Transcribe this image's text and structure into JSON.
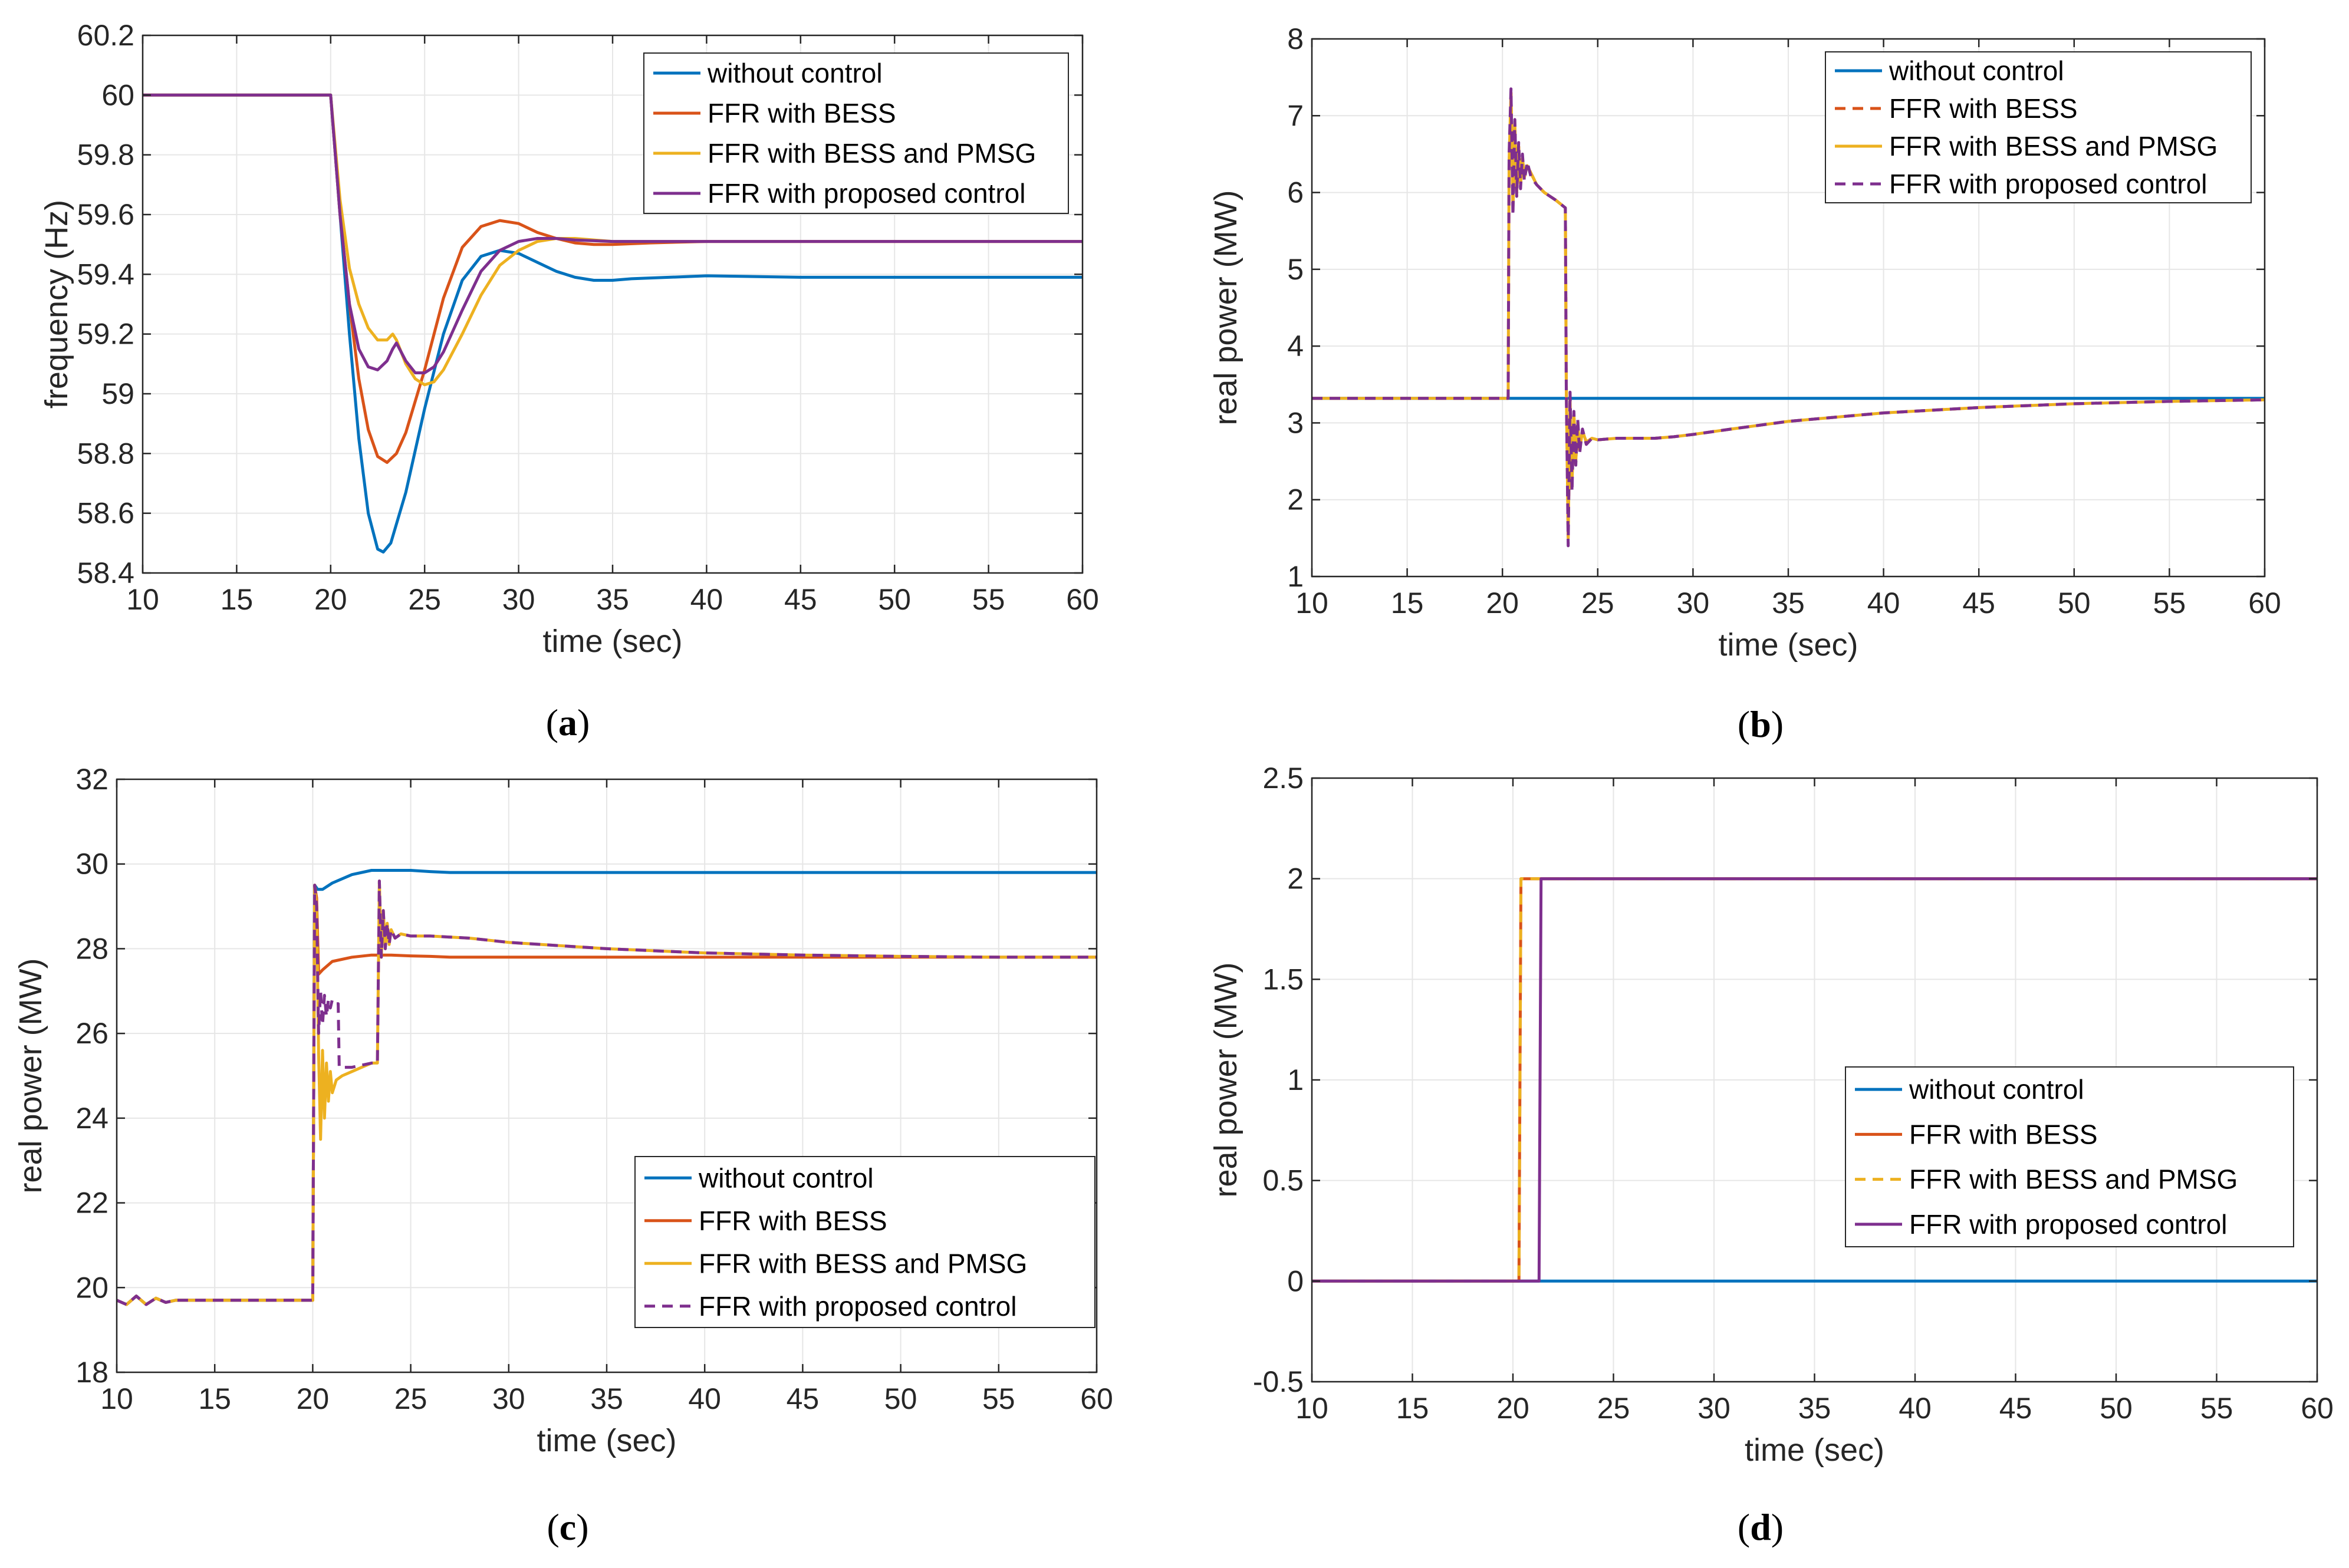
{
  "colors": {
    "blue": "#0072BD",
    "orange": "#D95319",
    "yellow": "#EDB120",
    "purple": "#7E2F8E",
    "grid": "#e6e6e6",
    "axis": "#262626"
  },
  "chart_data": [
    {
      "id": "a",
      "type": "line",
      "caption_label": "a",
      "xlabel": "time (sec)",
      "ylabel": "frequency (Hz)",
      "xlim": [
        10,
        60
      ],
      "ylim": [
        58.4,
        60.2
      ],
      "xticks": [
        10,
        15,
        20,
        25,
        30,
        35,
        40,
        45,
        50,
        55,
        60
      ],
      "yticks": [
        58.4,
        58.6,
        58.8,
        59,
        59.2,
        59.4,
        59.6,
        59.8,
        60,
        60.2
      ],
      "ytick_labels": [
        "58.4",
        "58.6",
        "58.8",
        "59",
        "59.2",
        "59.4",
        "59.6",
        "59.8",
        "60",
        "60.2"
      ],
      "legend_position": "top-right",
      "series": [
        {
          "name": "without control",
          "color": "blue",
          "dashed": false,
          "x": [
            10,
            20,
            20.5,
            21,
            21.5,
            22,
            22.5,
            22.8,
            23.2,
            24,
            25,
            26,
            27,
            28,
            29,
            30,
            31,
            32,
            33,
            34,
            35,
            36,
            38,
            40,
            45,
            50,
            55,
            60
          ],
          "y": [
            60,
            60,
            59.6,
            59.2,
            58.85,
            58.6,
            58.48,
            58.47,
            58.5,
            58.67,
            58.95,
            59.2,
            59.38,
            59.46,
            59.48,
            59.47,
            59.44,
            59.41,
            59.39,
            59.38,
            59.38,
            59.385,
            59.39,
            59.395,
            59.39,
            59.39,
            59.39,
            59.39
          ]
        },
        {
          "name": "FFR with BESS",
          "color": "orange",
          "dashed": false,
          "x": [
            10,
            20,
            20.5,
            21,
            21.5,
            22,
            22.5,
            23,
            23.5,
            24,
            25,
            26,
            27,
            28,
            29,
            30,
            31,
            32,
            33,
            34,
            35,
            37,
            40,
            45,
            50,
            55,
            60
          ],
          "y": [
            60,
            60,
            59.6,
            59.3,
            59.05,
            58.88,
            58.79,
            58.77,
            58.8,
            58.87,
            59.08,
            59.32,
            59.49,
            59.56,
            59.58,
            59.57,
            59.54,
            59.52,
            59.505,
            59.5,
            59.5,
            59.505,
            59.51,
            59.51,
            59.51,
            59.51,
            59.51
          ]
        },
        {
          "name": "FFR with BESS and PMSG",
          "color": "yellow",
          "dashed": false,
          "x": [
            10,
            20,
            20.5,
            21,
            21.5,
            22,
            22.5,
            23,
            23.3,
            23.5,
            24,
            24.5,
            25,
            25.5,
            26,
            27,
            28,
            29,
            30,
            31,
            32,
            33,
            35,
            40,
            45,
            50,
            55,
            60
          ],
          "y": [
            60,
            60,
            59.65,
            59.42,
            59.3,
            59.22,
            59.18,
            59.18,
            59.2,
            59.18,
            59.1,
            59.05,
            59.03,
            59.04,
            59.08,
            59.2,
            59.33,
            59.43,
            59.48,
            59.51,
            59.52,
            59.52,
            59.51,
            59.51,
            59.51,
            59.51,
            59.51,
            59.51
          ]
        },
        {
          "name": "FFR with proposed control",
          "color": "purple",
          "dashed": false,
          "x": [
            10,
            20,
            20.5,
            21,
            21.5,
            22,
            22.5,
            23,
            23.3,
            23.5,
            24,
            24.5,
            25,
            25.5,
            26,
            27,
            28,
            29,
            30,
            31,
            32,
            33,
            35,
            40,
            45,
            50,
            55,
            60
          ],
          "y": [
            60,
            60,
            59.6,
            59.3,
            59.15,
            59.09,
            59.08,
            59.11,
            59.15,
            59.17,
            59.11,
            59.07,
            59.07,
            59.09,
            59.14,
            59.28,
            59.41,
            59.48,
            59.51,
            59.52,
            59.52,
            59.515,
            59.51,
            59.51,
            59.51,
            59.51,
            59.51,
            59.51
          ]
        }
      ]
    },
    {
      "id": "b",
      "type": "line",
      "caption_label": "b",
      "xlabel": "time (sec)",
      "ylabel": "real power (MW)",
      "xlim": [
        10,
        60
      ],
      "ylim": [
        1,
        8
      ],
      "xticks": [
        10,
        15,
        20,
        25,
        30,
        35,
        40,
        45,
        50,
        55,
        60
      ],
      "yticks": [
        1,
        2,
        3,
        4,
        5,
        6,
        7,
        8
      ],
      "ytick_labels": [
        "1",
        "2",
        "3",
        "4",
        "5",
        "6",
        "7",
        "8"
      ],
      "legend_position": "top-right",
      "series": [
        {
          "name": "without control",
          "color": "blue",
          "dashed": false,
          "x": [
            10,
            60
          ],
          "y": [
            3.32,
            3.32
          ]
        },
        {
          "name": "FFR with BESS",
          "color": "orange",
          "dashed": true,
          "x": [
            10,
            20.3,
            20.35,
            20.45,
            20.55,
            20.65,
            20.75,
            20.85,
            20.95,
            21.05,
            21.15,
            21.3,
            21.5,
            21.8,
            22.2,
            22.8,
            23.3,
            23.35,
            23.45,
            23.55,
            23.65,
            23.75,
            23.85,
            23.95,
            24.05,
            24.2,
            24.4,
            24.7,
            25,
            26,
            27,
            28,
            29,
            30,
            32,
            35,
            40,
            45,
            50,
            55,
            60
          ],
          "y": [
            3.32,
            3.32,
            6.4,
            7.3,
            5.8,
            6.9,
            6.0,
            6.6,
            6.1,
            6.45,
            6.2,
            6.35,
            6.25,
            6.1,
            6.0,
            5.9,
            5.8,
            3.5,
            1.5,
            3.3,
            2.2,
            3.1,
            2.5,
            3.0,
            2.65,
            2.9,
            2.75,
            2.8,
            2.78,
            2.8,
            2.8,
            2.8,
            2.82,
            2.85,
            2.92,
            3.02,
            3.13,
            3.2,
            3.25,
            3.28,
            3.3
          ]
        },
        {
          "name": "FFR with BESS and PMSG",
          "color": "yellow",
          "dashed": false,
          "x": [
            10,
            20.3,
            20.35,
            20.45,
            20.55,
            20.65,
            20.75,
            20.85,
            20.95,
            21.05,
            21.15,
            21.3,
            21.5,
            21.8,
            22.2,
            22.8,
            23.3,
            23.35,
            23.45,
            23.55,
            23.65,
            23.75,
            23.85,
            23.95,
            24.05,
            24.2,
            24.4,
            24.7,
            25,
            26,
            27,
            28,
            29,
            30,
            32,
            35,
            40,
            45,
            50,
            55,
            60
          ],
          "y": [
            3.32,
            3.32,
            6.4,
            7.3,
            5.8,
            6.9,
            6.0,
            6.6,
            6.1,
            6.45,
            6.2,
            6.35,
            6.25,
            6.1,
            6.0,
            5.9,
            5.8,
            3.5,
            1.5,
            3.3,
            2.2,
            3.1,
            2.5,
            3.0,
            2.65,
            2.9,
            2.75,
            2.8,
            2.78,
            2.8,
            2.8,
            2.8,
            2.82,
            2.85,
            2.92,
            3.02,
            3.13,
            3.2,
            3.25,
            3.28,
            3.3
          ]
        },
        {
          "name": "FFR with proposed control",
          "color": "purple",
          "dashed": true,
          "x": [
            10,
            20.3,
            20.35,
            20.45,
            20.55,
            20.65,
            20.75,
            20.85,
            20.95,
            21.05,
            21.15,
            21.3,
            21.5,
            21.8,
            22.2,
            22.8,
            23.3,
            23.35,
            23.45,
            23.55,
            23.65,
            23.75,
            23.85,
            23.95,
            24.05,
            24.2,
            24.4,
            24.7,
            25,
            26,
            27,
            28,
            29,
            30,
            32,
            35,
            40,
            45,
            50,
            55,
            60
          ],
          "y": [
            3.32,
            3.32,
            6.5,
            7.35,
            5.7,
            6.95,
            5.95,
            6.65,
            6.05,
            6.5,
            6.15,
            6.4,
            6.2,
            6.1,
            6.0,
            5.9,
            5.8,
            3.4,
            1.4,
            3.4,
            2.1,
            3.15,
            2.45,
            3.05,
            2.6,
            2.92,
            2.72,
            2.8,
            2.78,
            2.8,
            2.8,
            2.8,
            2.82,
            2.85,
            2.92,
            3.02,
            3.13,
            3.2,
            3.25,
            3.28,
            3.3
          ]
        }
      ]
    },
    {
      "id": "c",
      "type": "line",
      "caption_label": "c",
      "xlabel": "time (sec)",
      "ylabel": "real power (MW)",
      "xlim": [
        10,
        60
      ],
      "ylim": [
        18,
        32
      ],
      "xticks": [
        10,
        15,
        20,
        25,
        30,
        35,
        40,
        45,
        50,
        55,
        60
      ],
      "yticks": [
        18,
        20,
        22,
        24,
        26,
        28,
        30,
        32
      ],
      "ytick_labels": [
        "18",
        "20",
        "22",
        "24",
        "26",
        "28",
        "30",
        "32"
      ],
      "legend_position": "bottom-right",
      "series": [
        {
          "name": "without control",
          "color": "blue",
          "dashed": false,
          "x": [
            10,
            10.5,
            11,
            11.5,
            12,
            12.5,
            13,
            14,
            20,
            20.1,
            20.25,
            20.5,
            21,
            22,
            23,
            24,
            25,
            26,
            27,
            28,
            30,
            35,
            40,
            45,
            50,
            55,
            60
          ],
          "y": [
            19.7,
            19.6,
            19.8,
            19.6,
            19.75,
            19.65,
            19.7,
            19.7,
            19.7,
            29.5,
            29.4,
            29.4,
            29.55,
            29.75,
            29.85,
            29.85,
            29.85,
            29.82,
            29.8,
            29.8,
            29.8,
            29.8,
            29.8,
            29.8,
            29.8,
            29.8,
            29.8
          ]
        },
        {
          "name": "FFR with BESS",
          "color": "orange",
          "dashed": false,
          "x": [
            10,
            10.5,
            11,
            11.5,
            12,
            12.5,
            13,
            14,
            20,
            20.1,
            20.2,
            20.3,
            20.5,
            21,
            22,
            23,
            24,
            25,
            26,
            27,
            28,
            30,
            35,
            40,
            45,
            50,
            55,
            60
          ],
          "y": [
            19.7,
            19.6,
            19.8,
            19.6,
            19.75,
            19.65,
            19.7,
            19.7,
            19.7,
            29.5,
            29.2,
            27.4,
            27.5,
            27.7,
            27.8,
            27.85,
            27.85,
            27.83,
            27.82,
            27.8,
            27.8,
            27.8,
            27.8,
            27.8,
            27.8,
            27.8,
            27.8,
            27.8
          ]
        },
        {
          "name": "FFR with BESS and PMSG",
          "color": "yellow",
          "dashed": false,
          "x": [
            10,
            10.5,
            11,
            11.5,
            12,
            12.5,
            13,
            14,
            20,
            20.1,
            20.2,
            20.3,
            20.4,
            20.5,
            20.6,
            20.7,
            20.8,
            20.9,
            21.0,
            21.2,
            21.5,
            22,
            22.5,
            23,
            23.3,
            23.4,
            23.5,
            23.6,
            23.7,
            23.8,
            23.9,
            24.0,
            24.2,
            24.5,
            25,
            26,
            28,
            30,
            35,
            40,
            45,
            50,
            55,
            60
          ],
          "y": [
            19.7,
            19.6,
            19.8,
            19.6,
            19.75,
            19.65,
            19.7,
            19.7,
            19.7,
            29.5,
            29.0,
            25.5,
            23.5,
            25.6,
            24.0,
            25.3,
            24.4,
            25.1,
            24.6,
            24.9,
            25.0,
            25.1,
            25.2,
            25.3,
            25.3,
            29.6,
            27.8,
            28.9,
            28.0,
            28.6,
            28.1,
            28.45,
            28.25,
            28.35,
            28.3,
            28.3,
            28.25,
            28.15,
            28.0,
            27.9,
            27.85,
            27.82,
            27.8,
            27.8
          ]
        },
        {
          "name": "FFR with proposed control",
          "color": "purple",
          "dashed": true,
          "x": [
            10,
            10.5,
            11,
            11.5,
            12,
            12.5,
            13,
            14,
            20,
            20.1,
            20.2,
            20.3,
            20.4,
            20.5,
            20.6,
            20.7,
            20.8,
            20.9,
            21.0,
            21.2,
            21.3,
            21.35,
            21.5,
            22,
            22.5,
            23,
            23.3,
            23.4,
            23.5,
            23.6,
            23.7,
            23.8,
            23.9,
            24.0,
            24.2,
            24.5,
            25,
            26,
            28,
            30,
            35,
            40,
            45,
            50,
            55,
            60
          ],
          "y": [
            19.7,
            19.6,
            19.8,
            19.6,
            19.75,
            19.65,
            19.7,
            19.7,
            19.7,
            29.5,
            29.0,
            26.0,
            27.0,
            26.2,
            26.9,
            26.4,
            26.8,
            26.6,
            26.8,
            26.7,
            26.7,
            25.2,
            25.2,
            25.2,
            25.25,
            25.3,
            25.3,
            29.6,
            27.8,
            28.9,
            28.0,
            28.6,
            28.1,
            28.45,
            28.25,
            28.35,
            28.3,
            28.3,
            28.25,
            28.15,
            28.0,
            27.9,
            27.85,
            27.82,
            27.8,
            27.8
          ]
        }
      ]
    },
    {
      "id": "d",
      "type": "line",
      "caption_label": "d",
      "xlabel": "time (sec)",
      "ylabel": "real power (MW)",
      "xlim": [
        10,
        60
      ],
      "ylim": [
        -0.5,
        2.5
      ],
      "xticks": [
        10,
        15,
        20,
        25,
        30,
        35,
        40,
        45,
        50,
        55,
        60
      ],
      "yticks": [
        -0.5,
        0,
        0.5,
        1,
        1.5,
        2,
        2.5
      ],
      "ytick_labels": [
        "-0.5",
        "0",
        "0.5",
        "1",
        "1.5",
        "2",
        "2.5"
      ],
      "legend_position": "center-right",
      "series": [
        {
          "name": "without control",
          "color": "blue",
          "dashed": false,
          "x": [
            10,
            60
          ],
          "y": [
            0,
            0
          ]
        },
        {
          "name": "FFR with BESS",
          "color": "orange",
          "dashed": false,
          "x": [
            10,
            20.3,
            20.4,
            60
          ],
          "y": [
            0,
            0,
            2,
            2
          ]
        },
        {
          "name": "FFR with BESS and PMSG",
          "color": "yellow",
          "dashed": true,
          "x": [
            10,
            20.3,
            20.4,
            60
          ],
          "y": [
            0,
            0,
            2,
            2
          ]
        },
        {
          "name": "FFR with proposed control",
          "color": "purple",
          "dashed": false,
          "x": [
            10,
            21.3,
            21.4,
            60
          ],
          "y": [
            0,
            0,
            2,
            2
          ]
        }
      ]
    }
  ]
}
